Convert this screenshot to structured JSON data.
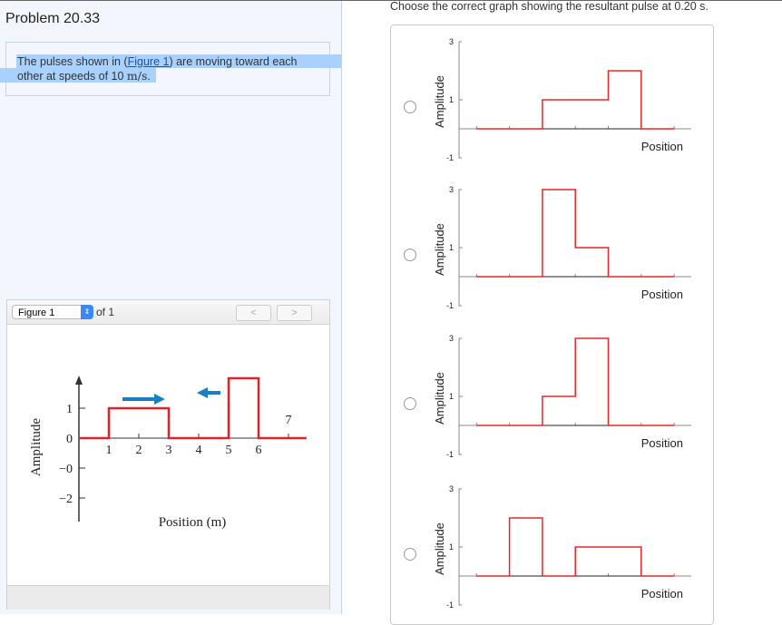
{
  "problem": {
    "title": "Problem 20.33",
    "text_before": "The pulses shown in (",
    "link": "Figure 1",
    "text_after": ") are moving toward each other at speeds of 10 ",
    "unit": "m/s",
    "end": "."
  },
  "figure_panel": {
    "selector": "Figure 1",
    "of_label": "of 1",
    "prev": "<",
    "next": ">"
  },
  "figure": {
    "ylabel": "Amplitude",
    "xlabel": "Position (m)",
    "yticks": [
      "1",
      "0",
      "−0",
      "−2"
    ],
    "xticks": [
      "1",
      "2",
      "3",
      "4",
      "5",
      "6",
      "7"
    ],
    "pulses": [
      {
        "from": 1,
        "to": 3,
        "amplitude": 1,
        "direction": "right"
      },
      {
        "from": 5,
        "to": 6,
        "amplitude": 2,
        "direction": "left"
      }
    ],
    "pulse_color": "#e0202a",
    "arrow_color": "#1a7fc1"
  },
  "question": {
    "prompt": "Choose the correct graph showing the resultant pulse at 0.20 s.",
    "options": [
      {
        "ylabel": "Amplitude",
        "xlabel": "Position",
        "yticks": [
          "3",
          "1",
          "-1"
        ],
        "segments": [
          [
            1,
            3,
            0
          ],
          [
            3,
            5,
            1
          ],
          [
            5,
            6,
            2
          ],
          [
            6,
            7,
            0
          ]
        ]
      },
      {
        "ylabel": "Amplitude",
        "xlabel": "Position",
        "yticks": [
          "3",
          "1",
          "-1"
        ],
        "segments": [
          [
            1,
            3,
            0
          ],
          [
            3,
            4,
            3
          ],
          [
            4,
            5,
            1
          ],
          [
            5,
            7,
            0
          ]
        ]
      },
      {
        "ylabel": "Amplitude",
        "xlabel": "Position",
        "yticks": [
          "3",
          "1",
          "-1"
        ],
        "segments": [
          [
            1,
            3,
            0
          ],
          [
            3,
            4,
            1
          ],
          [
            4,
            5,
            3
          ],
          [
            5,
            7,
            0
          ]
        ]
      },
      {
        "ylabel": "Amplitude",
        "xlabel": "Position",
        "yticks": [
          "3",
          "1",
          "-1"
        ],
        "segments": [
          [
            1,
            2,
            0
          ],
          [
            2,
            3,
            2
          ],
          [
            3,
            4,
            0
          ],
          [
            4,
            6,
            1
          ],
          [
            6,
            7,
            0
          ]
        ]
      }
    ],
    "line_color": "#e8262a"
  }
}
